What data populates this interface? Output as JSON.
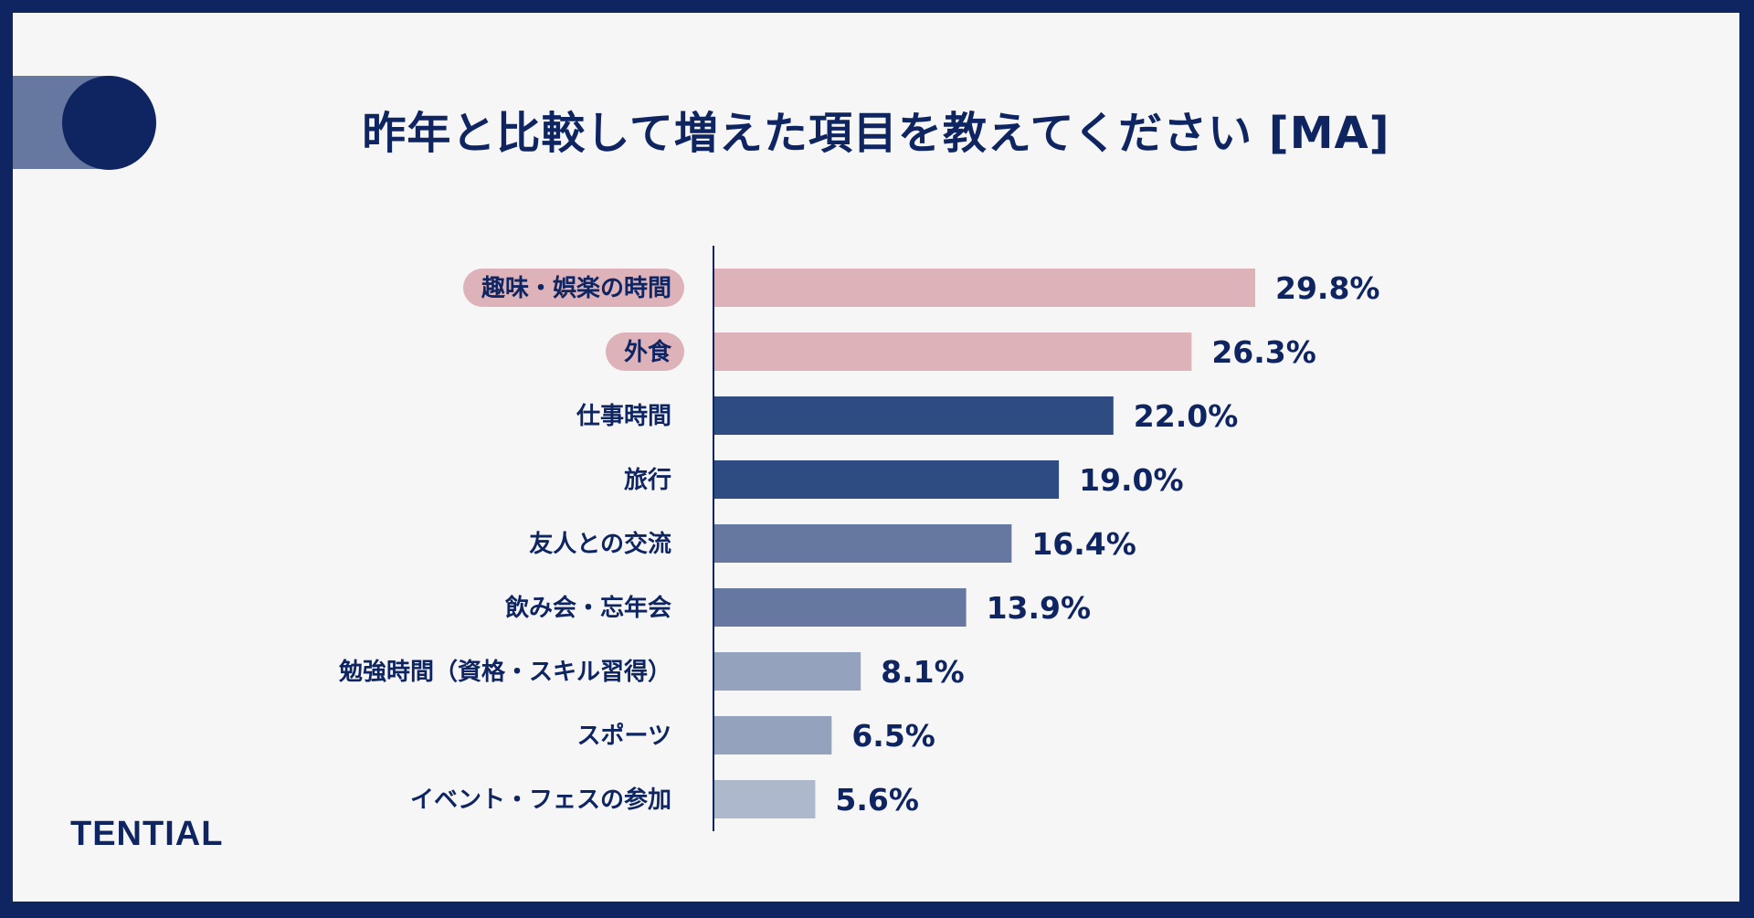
{
  "title": "昨年と比較して増えた項目を教えてください [MA]",
  "brand": "TENTIAL",
  "chart_data": {
    "type": "bar",
    "orientation": "horizontal",
    "categories": [
      "趣味・娯楽の時間",
      "外食",
      "仕事時間",
      "旅行",
      "友人との交流",
      "飲み会・忘年会",
      "勉強時間（資格・スキル習得）",
      "スポーツ",
      "イベント・フェスの参加"
    ],
    "values": [
      29.8,
      26.3,
      22.0,
      19.0,
      16.4,
      13.9,
      8.1,
      6.5,
      5.6
    ],
    "value_labels": [
      "29.8%",
      "26.3%",
      "22.0%",
      "19.0%",
      "16.4%",
      "13.9%",
      "8.1%",
      "6.5%",
      "5.6%"
    ],
    "highlighted": [
      true,
      true,
      false,
      false,
      false,
      false,
      false,
      false,
      false
    ],
    "bar_colors": [
      "#ddb2b8",
      "#ddb2b8",
      "#2f4c82",
      "#2f4c82",
      "#66789f",
      "#66789f",
      "#95a2bd",
      "#95a2bd",
      "#adb8cd"
    ],
    "highlight_pill_color": "#ddb2b8",
    "text_color": "#0f2561",
    "xlim": [
      0,
      30
    ],
    "grid": false
  }
}
